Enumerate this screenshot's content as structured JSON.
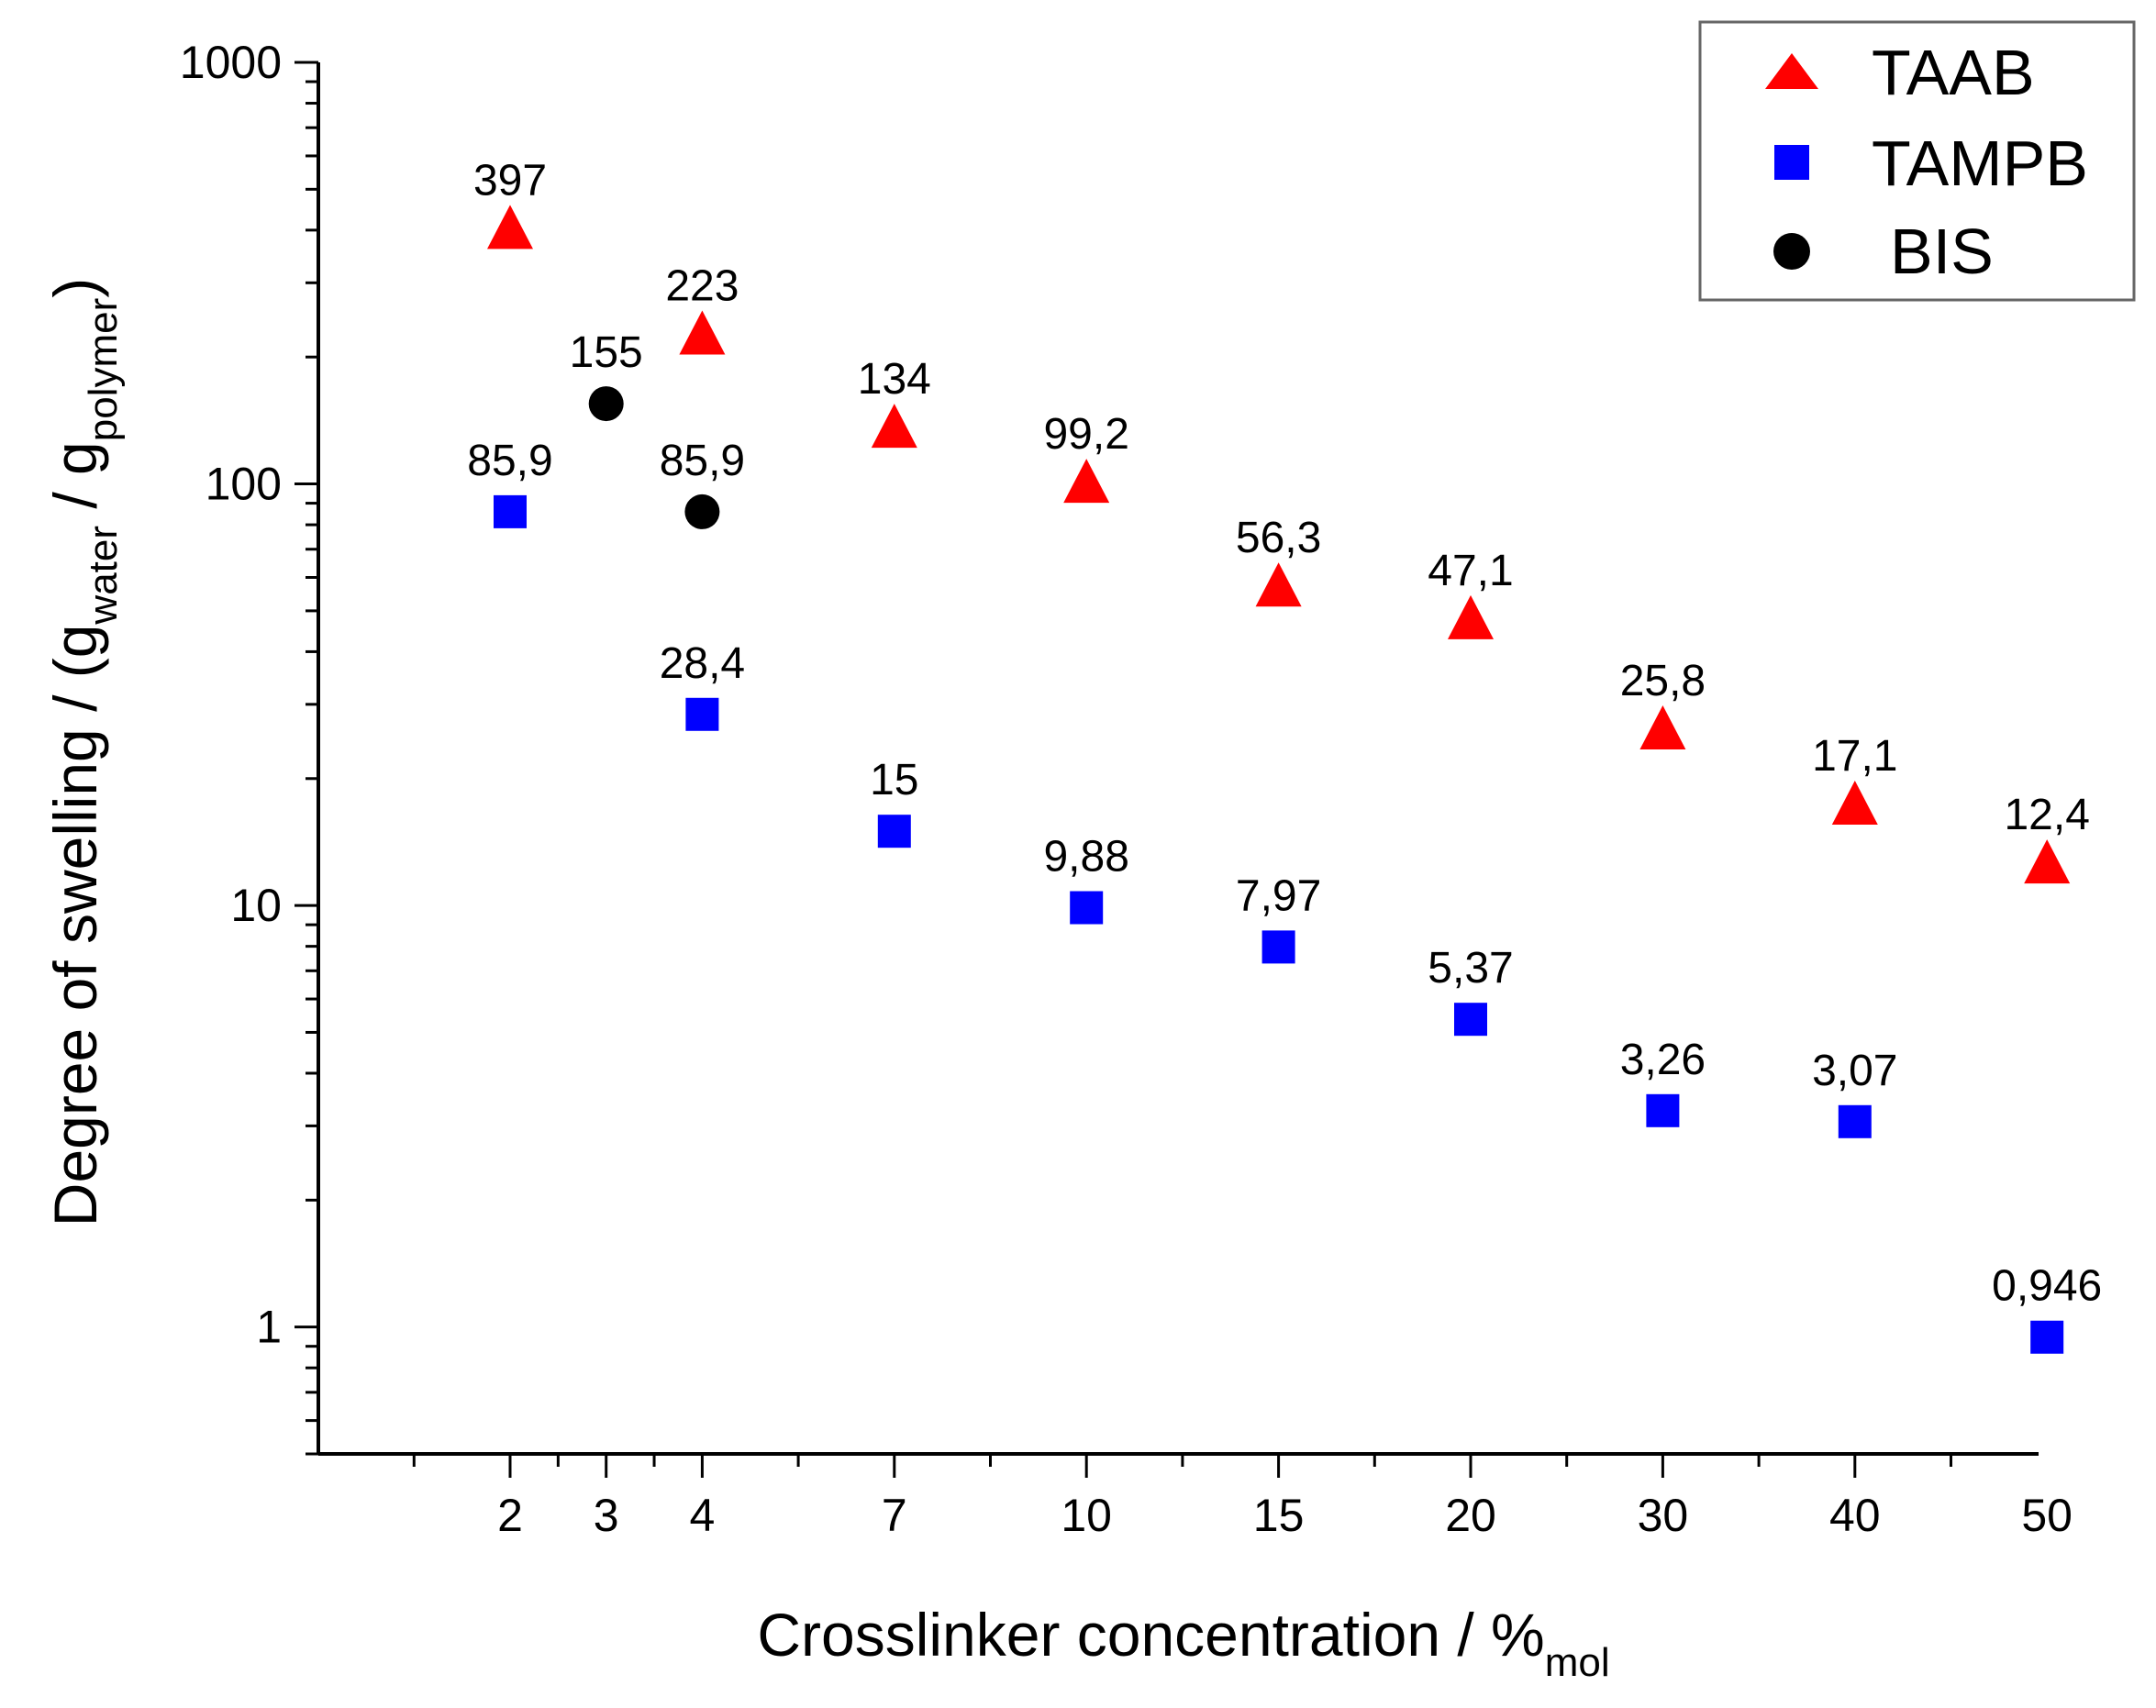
{
  "chart_data": {
    "type": "scatter",
    "title": "",
    "xlabel": {
      "main": "Crosslinker concentration / %",
      "sub": "mol"
    },
    "ylabel": {
      "main": "Degree of swelling / (g",
      "sub1": "water",
      "mid": " / g",
      "sub2": "polymer",
      "end": ")"
    },
    "y_scale": "log",
    "ylim": [
      0.5,
      1000
    ],
    "y_ticks": [
      1,
      10,
      100,
      1000
    ],
    "y_tick_labels": [
      "1",
      "10",
      "100",
      "1000"
    ],
    "x_categories": [
      "2",
      "3",
      "4",
      "7",
      "10",
      "15",
      "20",
      "30",
      "40",
      "50"
    ],
    "x_category_slots": [
      0,
      1,
      2,
      4,
      6,
      8,
      10,
      12,
      14,
      16
    ],
    "legend_position": "top-right",
    "series": [
      {
        "name": "TAAB",
        "marker": "triangle",
        "color": "#ff0000",
        "points": [
          {
            "x": "2",
            "y": 397,
            "label": "397"
          },
          {
            "x": "4",
            "y": 223,
            "label": "223"
          },
          {
            "x": "7",
            "y": 134,
            "label": "134"
          },
          {
            "x": "10",
            "y": 99.2,
            "label": "99,2"
          },
          {
            "x": "15",
            "y": 56.3,
            "label": "56,3"
          },
          {
            "x": "20",
            "y": 47.1,
            "label": "47,1"
          },
          {
            "x": "30",
            "y": 25.8,
            "label": "25,8"
          },
          {
            "x": "40",
            "y": 17.1,
            "label": "17,1"
          },
          {
            "x": "50",
            "y": 12.4,
            "label": "12,4"
          }
        ]
      },
      {
        "name": "TAMPB",
        "marker": "square",
        "color": "#0000ff",
        "points": [
          {
            "x": "2",
            "y": 85.9,
            "label": "85,9"
          },
          {
            "x": "4",
            "y": 28.4,
            "label": "28,4"
          },
          {
            "x": "7",
            "y": 15,
            "label": "15"
          },
          {
            "x": "10",
            "y": 9.88,
            "label": "9,88"
          },
          {
            "x": "15",
            "y": 7.97,
            "label": "7,97"
          },
          {
            "x": "20",
            "y": 5.37,
            "label": "5,37"
          },
          {
            "x": "30",
            "y": 3.26,
            "label": "3,26"
          },
          {
            "x": "40",
            "y": 3.07,
            "label": "3,07"
          },
          {
            "x": "50",
            "y": 0.946,
            "label": "0,946"
          }
        ]
      },
      {
        "name": "BIS",
        "marker": "circle",
        "color": "#000000",
        "points": [
          {
            "x": "3",
            "y": 155,
            "label": "155"
          },
          {
            "x": "4",
            "y": 85.9,
            "label": "85,9"
          }
        ]
      }
    ]
  }
}
